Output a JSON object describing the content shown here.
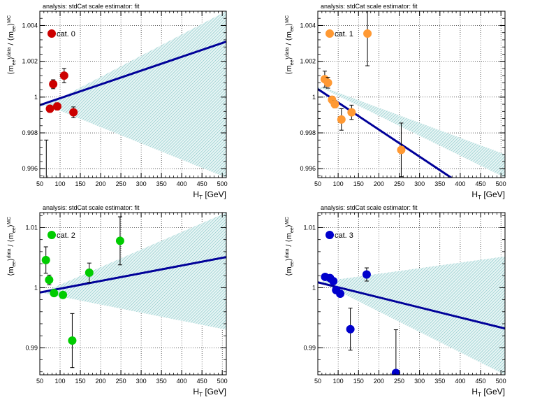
{
  "chart_data": [
    {
      "type": "scatter",
      "header": "analysis: stdCat   scale estimator: fit",
      "legend": "cat. 0",
      "legend_placement": "top-left",
      "marker_color": "#cc0000",
      "xlabel_main": "H",
      "xlabel_sub": "T",
      "xlabel_unit": " [GeV]",
      "xlim": [
        50,
        510
      ],
      "ylim": [
        0.9955,
        1.0048
      ],
      "xticks": [
        50,
        100,
        150,
        200,
        250,
        300,
        350,
        400,
        450,
        500
      ],
      "xtick_labels": [
        "50",
        "100",
        "150",
        "200",
        "250",
        "300",
        "350",
        "400",
        "450",
        "500"
      ],
      "yticks": [
        0.996,
        0.998,
        1.0,
        1.002,
        1.004
      ],
      "ytick_labels": [
        "0.996",
        "0.998",
        "1",
        "1.002",
        "1.004"
      ],
      "grid": true,
      "points": [
        {
          "x": 66,
          "y": 0.99525,
          "err": 0.00235
        },
        {
          "x": 75,
          "y": 0.99935,
          "err": 0.0002
        },
        {
          "x": 83,
          "y": 1.00072,
          "err": 0.00025
        },
        {
          "x": 93,
          "y": 0.99948,
          "err": 0.0002
        },
        {
          "x": 110,
          "y": 1.0012,
          "err": 0.0004
        },
        {
          "x": 133,
          "y": 0.99915,
          "err": 0.0003
        }
      ],
      "fit": {
        "y_at_xmin": 0.99955,
        "y_at_xmax": 1.0031
      },
      "band": {
        "xpivot": 70,
        "ypivot": 0.99955,
        "ylo_xmax": 0.9955,
        "yhi_xmax": 1.0048
      }
    },
    {
      "type": "scatter",
      "header": "analysis: stdCat   scale estimator: fit",
      "legend": "cat. 1",
      "legend_placement": "top-left",
      "marker_color": "#ff9933",
      "xlabel_main": "H",
      "xlabel_sub": "T",
      "xlabel_unit": " [GeV]",
      "xlim": [
        50,
        510
      ],
      "ylim": [
        0.9955,
        1.0048
      ],
      "xticks": [
        50,
        100,
        150,
        200,
        250,
        300,
        350,
        400,
        450,
        500
      ],
      "xtick_labels": [
        "50",
        "100",
        "150",
        "200",
        "250",
        "300",
        "350",
        "400",
        "450",
        "500"
      ],
      "yticks": [
        0.996,
        0.998,
        1.0,
        1.002,
        1.004
      ],
      "ytick_labels": [
        "0.996",
        "0.998",
        "1",
        "1.002",
        "1.004"
      ],
      "grid": true,
      "points": [
        {
          "x": 67,
          "y": 1.001,
          "err": 0.00045
        },
        {
          "x": 75,
          "y": 1.0008,
          "err": 0.0003
        },
        {
          "x": 85,
          "y": 0.99985,
          "err": 0.0002
        },
        {
          "x": 92,
          "y": 0.9996,
          "err": 0.0002
        },
        {
          "x": 108,
          "y": 0.99875,
          "err": 0.0006
        },
        {
          "x": 133,
          "y": 0.99915,
          "err": 0.0004
        },
        {
          "x": 172,
          "y": 1.00355,
          "err": 0.0018
        },
        {
          "x": 255,
          "y": 0.99705,
          "err": 0.0015
        }
      ],
      "fit": {
        "y_at_xmin": 1.00045,
        "y_at_xmax": 0.9935
      },
      "band": {
        "xpivot": 65,
        "ypivot": 1.0005,
        "ylo_xmax": 0.9955,
        "yhi_xmax": 0.9968
      }
    },
    {
      "type": "scatter",
      "header": "analysis: stdCat   scale estimator: fit",
      "legend": "cat. 2",
      "legend_placement": "top-left",
      "marker_color": "#00cc00",
      "xlabel_main": "H",
      "xlabel_sub": "T",
      "xlabel_unit": " [GeV]",
      "xlim": [
        50,
        510
      ],
      "ylim": [
        0.9855,
        1.0125
      ],
      "xticks": [
        50,
        100,
        150,
        200,
        250,
        300,
        350,
        400,
        450,
        500
      ],
      "xtick_labels": [
        "50",
        "100",
        "150",
        "200",
        "250",
        "300",
        "350",
        "400",
        "450",
        "500"
      ],
      "yticks": [
        0.99,
        1.0,
        1.01
      ],
      "ytick_labels": [
        "0.99",
        "1",
        "1.01"
      ],
      "grid": true,
      "points": [
        {
          "x": 65,
          "y": 1.0046,
          "err": 0.0022
        },
        {
          "x": 73,
          "y": 1.0013,
          "err": 0.0008
        },
        {
          "x": 85,
          "y": 0.9991,
          "err": 0.0004
        },
        {
          "x": 107,
          "y": 0.9988,
          "err": 0.0004
        },
        {
          "x": 130,
          "y": 0.9912,
          "err": 0.0045
        },
        {
          "x": 172,
          "y": 1.0025,
          "err": 0.0016
        },
        {
          "x": 248,
          "y": 1.0078,
          "err": 0.004
        }
      ],
      "fit": {
        "y_at_xmin": 0.9992,
        "y_at_xmax": 1.0051
      },
      "band": {
        "xpivot": 60,
        "ypivot": 0.9992,
        "ylo_xmax": 0.993,
        "yhi_xmax": 1.0125
      }
    },
    {
      "type": "scatter",
      "header": "analysis: stdCat   scale estimator: fit",
      "legend": "cat. 3",
      "legend_placement": "top-left",
      "marker_color": "#0000cc",
      "xlabel_main": "H",
      "xlabel_sub": "T",
      "xlabel_unit": " [GeV]",
      "xlim": [
        50,
        510
      ],
      "ylim": [
        0.9855,
        1.0125
      ],
      "xticks": [
        50,
        100,
        150,
        200,
        250,
        300,
        350,
        400,
        450,
        500
      ],
      "xtick_labels": [
        "50",
        "100",
        "150",
        "200",
        "250",
        "300",
        "350",
        "400",
        "450",
        "500"
      ],
      "yticks": [
        0.99,
        1.0,
        1.01
      ],
      "ytick_labels": [
        "0.99",
        "1",
        "1.01"
      ],
      "grid": true,
      "points": [
        {
          "x": 68,
          "y": 1.0018,
          "err": 0.0003
        },
        {
          "x": 80,
          "y": 1.0016,
          "err": 0.0003
        },
        {
          "x": 88,
          "y": 1.0011,
          "err": 0.0003
        },
        {
          "x": 95,
          "y": 0.9996,
          "err": 0.0004
        },
        {
          "x": 105,
          "y": 0.999,
          "err": 0.0004
        },
        {
          "x": 130,
          "y": 0.9931,
          "err": 0.0035
        },
        {
          "x": 170,
          "y": 1.0022,
          "err": 0.0011
        },
        {
          "x": 242,
          "y": 0.9858,
          "err": 0.0072
        }
      ],
      "fit": {
        "y_at_xmin": 1.0009,
        "y_at_xmax": 0.9932
      },
      "band": {
        "xpivot": 60,
        "ypivot": 1.0009,
        "ylo_xmax": 0.9855,
        "yhi_xmax": 1.0052
      }
    }
  ]
}
